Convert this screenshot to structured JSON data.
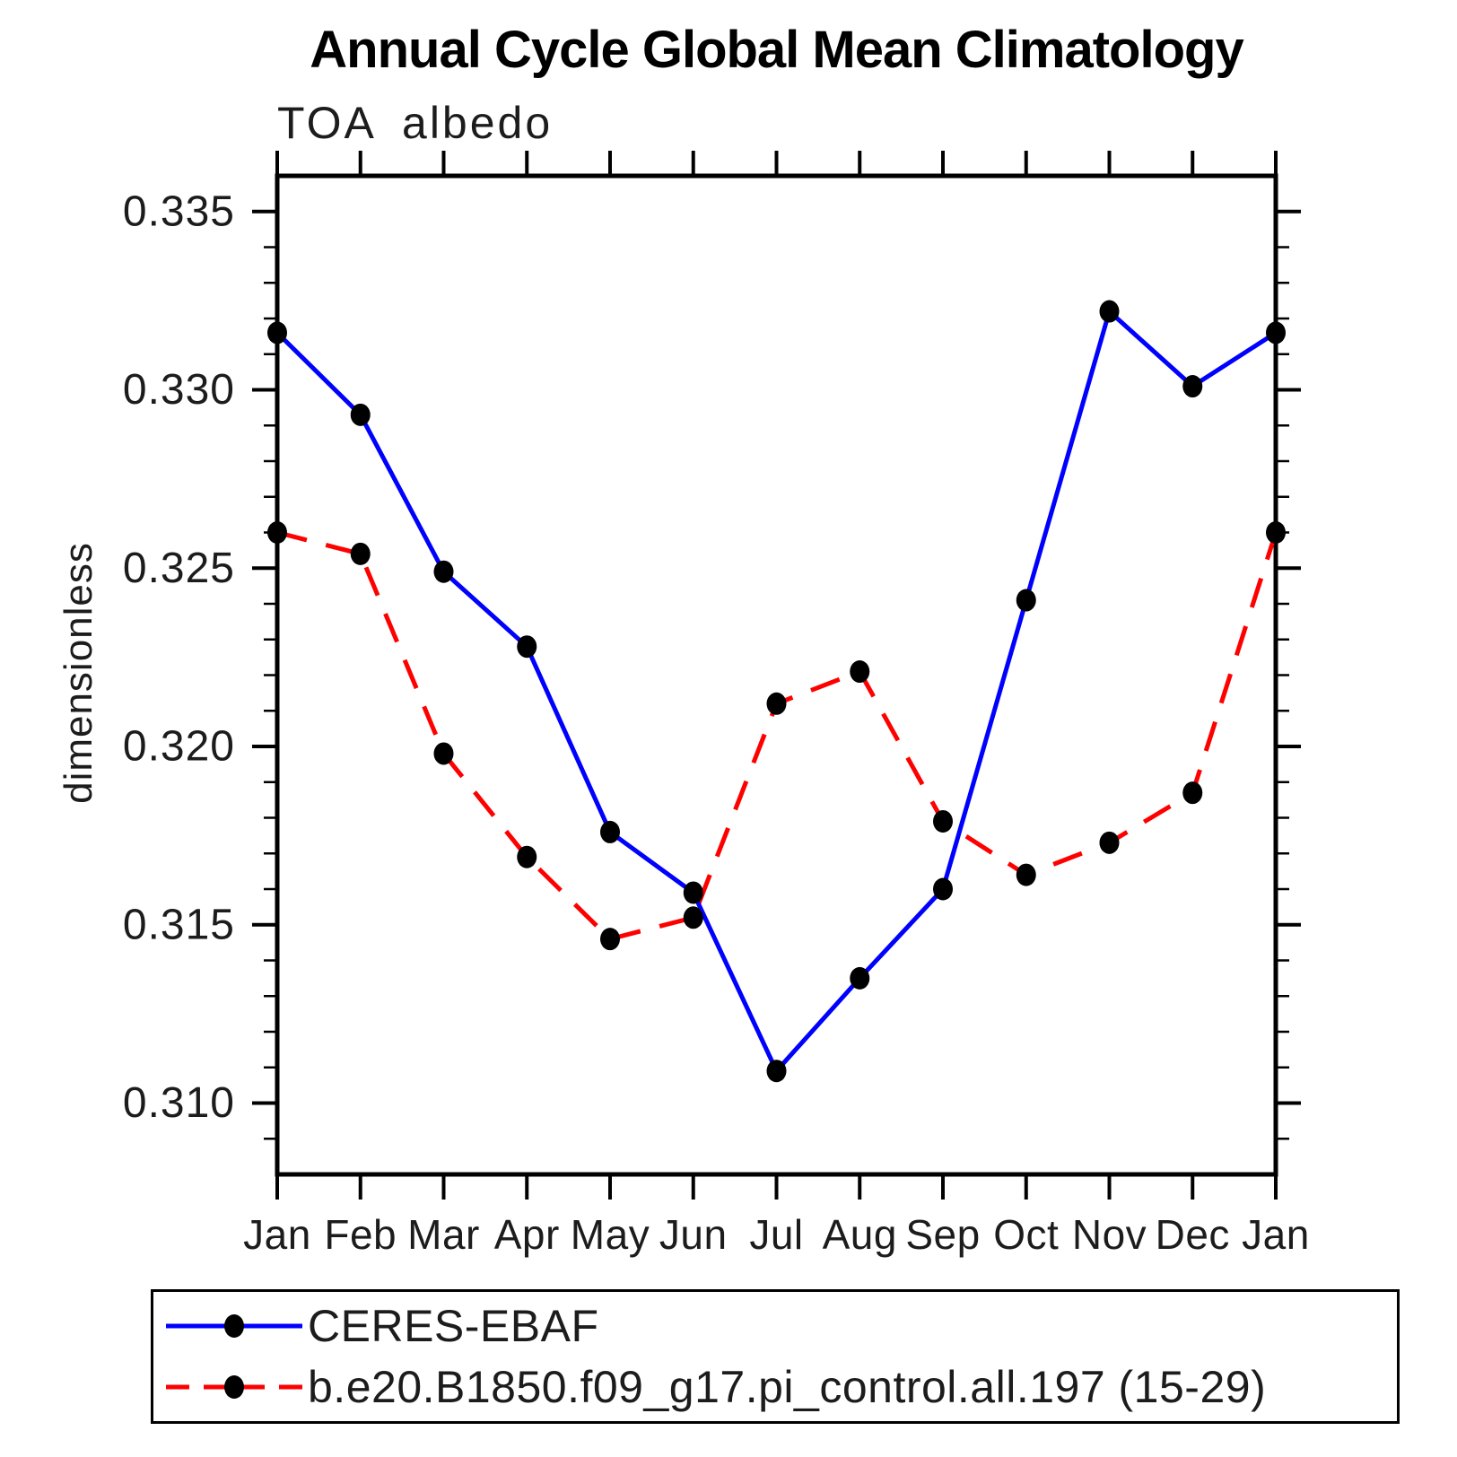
{
  "title": "Annual Cycle Global Mean Climatology",
  "subtitle": "TOA albedo",
  "y_axis_label": "dimensionless",
  "legend": {
    "position": "bottom",
    "entries": [
      {
        "label": "CERES-EBAF",
        "line_color": "#0000ff",
        "line_style": "solid",
        "marker": "filled-circle",
        "marker_color": "#000000"
      },
      {
        "label": "b.e20.B1850.f09_g17.pi_control.all.197 (15-29)",
        "line_color": "#ff0000",
        "line_style": "dashed",
        "marker": "filled-circle",
        "marker_color": "#000000"
      }
    ]
  },
  "chart_data": {
    "type": "line",
    "title": "Annual Cycle Global Mean Climatology",
    "subtitle": "TOA albedo",
    "xlabel": "",
    "ylabel": "dimensionless",
    "categories": [
      "Jan",
      "Feb",
      "Mar",
      "Apr",
      "May",
      "Jun",
      "Jul",
      "Aug",
      "Sep",
      "Oct",
      "Nov",
      "Dec",
      "Jan"
    ],
    "series": [
      {
        "name": "CERES-EBAF",
        "color": "#0000ff",
        "line_style": "solid",
        "marker": "filled-circle",
        "marker_color": "#000000",
        "values": [
          0.3316,
          0.3293,
          0.3249,
          0.3228,
          0.3176,
          0.3159,
          0.3109,
          0.3135,
          0.316,
          0.3241,
          0.3322,
          0.3301,
          0.3316
        ]
      },
      {
        "name": "b.e20.B1850.f09_g17.pi_control.all.197 (15-29)",
        "color": "#ff0000",
        "line_style": "dashed",
        "marker": "filled-circle",
        "marker_color": "#000000",
        "values": [
          0.326,
          0.3254,
          0.3198,
          0.3169,
          0.3146,
          0.3152,
          0.3212,
          0.3221,
          0.3179,
          0.3164,
          0.3173,
          0.3187,
          0.326
        ]
      }
    ],
    "ylim": [
      0.308,
      0.336
    ],
    "yticks_major": [
      0.31,
      0.315,
      0.32,
      0.325,
      0.33,
      0.335
    ],
    "ytick_labels": [
      "0.310",
      "0.315",
      "0.320",
      "0.325",
      "0.330",
      "0.335"
    ],
    "y_minor_step": 0.001,
    "grid": false,
    "ticks_direction": "out",
    "frame_color": "#000000",
    "legend_position": "bottom"
  }
}
